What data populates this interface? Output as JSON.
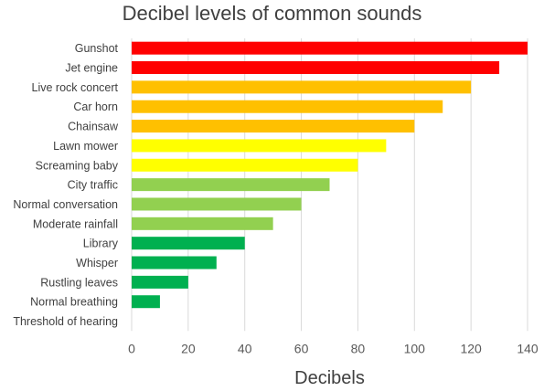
{
  "chart_data": {
    "type": "bar",
    "orientation": "horizontal",
    "title": "Decibel levels of common sounds",
    "xlabel": "Decibels",
    "ylabel": "",
    "xlim": [
      0,
      140
    ],
    "xticks": [
      0,
      20,
      40,
      60,
      80,
      100,
      120,
      140
    ],
    "grid": true,
    "legend": "none",
    "categories": [
      "Gunshot",
      "Jet engine",
      "Live rock concert",
      "Car horn",
      "Chainsaw",
      "Lawn mower",
      "Screaming baby",
      "City traffic",
      "Normal conversation",
      "Moderate rainfall",
      "Library",
      "Whisper",
      "Rustling leaves",
      "Normal breathing",
      "Threshold of hearing"
    ],
    "values": [
      140,
      130,
      120,
      110,
      100,
      90,
      80,
      70,
      60,
      50,
      40,
      30,
      20,
      10,
      0
    ],
    "colors": [
      "#ff0000",
      "#ff0000",
      "#ffc000",
      "#ffc000",
      "#ffc000",
      "#ffff00",
      "#ffff00",
      "#92d050",
      "#92d050",
      "#92d050",
      "#00b050",
      "#00b050",
      "#00b050",
      "#00b050",
      "#00b050"
    ]
  }
}
